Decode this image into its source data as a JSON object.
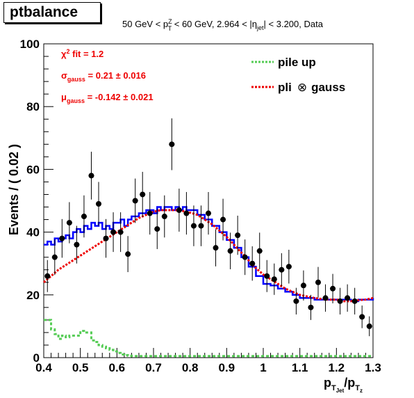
{
  "title": "ptbalance",
  "header": {
    "pre": "50 GeV < p",
    "pt_sup": "Z",
    "pt_sub": "T",
    "mid": " < 60 GeV, 2.964 < |η",
    "eta_sub": "jet",
    "post": "| < 3.200, Data"
  },
  "fit_labels": {
    "chi2": {
      "greek": "χ",
      "sup": "2",
      "text": " fit = 1.2"
    },
    "sigma": {
      "greek": "σ",
      "sub": "gauss",
      "text": " = 0.21 ± 0.016"
    },
    "mu": {
      "greek": "μ",
      "sub": "gauss",
      "text": " = -0.142 ± 0.021"
    }
  },
  "legend": {
    "pileup": "pile up",
    "pli_a": "pli",
    "otimes": "⊗",
    "pli_b": "gauss"
  },
  "axes": {
    "ylabel": "Events / ( 0.02 )",
    "xlabel_main": "p",
    "xlabel_sub": "T",
    "xlabel_subsub": "Jet",
    "xlabel_slash": "/p",
    "xlabel_sub2": "T",
    "xlabel_subsub2": "z"
  },
  "colors": {
    "data": "#000000",
    "pdf": "#0000ff",
    "fit": "#ee0000",
    "pileup": "#55cc55",
    "label_red": "#ee0000"
  },
  "chart_data": {
    "type": "scatter",
    "xlim": [
      0.4,
      1.3
    ],
    "ylim": [
      0,
      100
    ],
    "x_ticks": [
      0.4,
      0.5,
      0.6,
      0.7,
      0.8,
      0.9,
      1.0,
      1.1,
      1.2,
      1.3
    ],
    "x_tick_labels": [
      "0.4",
      "0.5",
      "0.6",
      "0.7",
      "0.8",
      "0.9",
      "1",
      "1.1",
      "1.2",
      "1.3"
    ],
    "y_ticks": [
      0,
      20,
      40,
      60,
      80,
      100
    ],
    "y_tick_labels": [
      "0",
      "20",
      "40",
      "60",
      "80",
      "100"
    ],
    "legend_position": "top-right",
    "series": [
      {
        "kind": "data_points",
        "x": [
          0.41,
          0.43,
          0.45,
          0.47,
          0.49,
          0.51,
          0.53,
          0.55,
          0.57,
          0.59,
          0.61,
          0.63,
          0.65,
          0.67,
          0.69,
          0.71,
          0.73,
          0.75,
          0.77,
          0.79,
          0.81,
          0.83,
          0.85,
          0.87,
          0.89,
          0.91,
          0.93,
          0.95,
          0.97,
          0.99,
          1.01,
          1.03,
          1.05,
          1.07,
          1.09,
          1.11,
          1.13,
          1.15,
          1.17,
          1.19,
          1.21,
          1.23,
          1.25,
          1.27,
          1.29
        ],
        "y": [
          26,
          32,
          38,
          43,
          36,
          45,
          58,
          49,
          38,
          40,
          40,
          33,
          50,
          52,
          46,
          41,
          45,
          68,
          47,
          46,
          42,
          42,
          46,
          35,
          44,
          34,
          39,
          32,
          30,
          34,
          26,
          25,
          28,
          29,
          18,
          23,
          16,
          24,
          19,
          22,
          18,
          19,
          18,
          13,
          10
        ]
      },
      {
        "kind": "pdf_step",
        "x": [
          0.4,
          0.41,
          0.42,
          0.43,
          0.44,
          0.45,
          0.46,
          0.47,
          0.48,
          0.49,
          0.5,
          0.51,
          0.52,
          0.53,
          0.54,
          0.55,
          0.56,
          0.57,
          0.58,
          0.59,
          0.6,
          0.61,
          0.62,
          0.63,
          0.64,
          0.65,
          0.66,
          0.67,
          0.68,
          0.69,
          0.7,
          0.71,
          0.72,
          0.73,
          0.74,
          0.75,
          0.76,
          0.77,
          0.78,
          0.79,
          0.8,
          0.82,
          0.84,
          0.86,
          0.88,
          0.9,
          0.92,
          0.94,
          0.96,
          0.98,
          1.0,
          1.02,
          1.04,
          1.06,
          1.08,
          1.1,
          1.12,
          1.14,
          1.16,
          1.18,
          1.2,
          1.22,
          1.24,
          1.26,
          1.28,
          1.3
        ],
        "y": [
          36,
          37,
          36,
          38,
          37,
          38,
          39,
          38,
          40,
          41,
          40,
          42,
          41,
          43,
          42,
          43,
          41,
          42,
          41,
          43,
          43,
          44,
          42,
          44,
          45,
          45,
          46,
          46,
          47,
          47,
          46,
          48,
          47,
          48,
          48,
          47,
          48,
          47,
          48,
          47,
          47,
          45.5,
          44,
          42,
          40,
          37.5,
          35,
          32,
          29,
          26,
          23.5,
          23,
          22,
          21,
          20,
          19,
          19,
          18.5,
          18.5,
          18.5,
          18.5,
          18.5,
          18,
          18.5,
          18.5,
          19
        ]
      },
      {
        "kind": "fit_curve",
        "x": [
          0.4,
          0.42,
          0.44,
          0.46,
          0.48,
          0.5,
          0.52,
          0.54,
          0.56,
          0.58,
          0.6,
          0.62,
          0.64,
          0.66,
          0.68,
          0.7,
          0.72,
          0.74,
          0.76,
          0.78,
          0.8,
          0.82,
          0.84,
          0.86,
          0.88,
          0.9,
          0.92,
          0.94,
          0.96,
          0.98,
          1.0,
          1.02,
          1.04,
          1.06,
          1.08,
          1.1,
          1.12,
          1.14,
          1.16,
          1.18,
          1.2,
          1.22,
          1.24,
          1.26,
          1.28,
          1.3
        ],
        "y": [
          24,
          26,
          28,
          29.5,
          31,
          32.5,
          34,
          35.5,
          37,
          38.5,
          40,
          41.5,
          43,
          44.5,
          45.5,
          46.5,
          47,
          47,
          47,
          46.7,
          46.2,
          45.5,
          44,
          42.5,
          40.5,
          38.5,
          36,
          33.5,
          31,
          28.5,
          26.5,
          25,
          23.5,
          22,
          21,
          20,
          19.5,
          19,
          18.7,
          18.5,
          18.5,
          18,
          18,
          18.3,
          18.5,
          19
        ]
      },
      {
        "kind": "pileup_step",
        "x": [
          0.4,
          0.41,
          0.42,
          0.43,
          0.44,
          0.45,
          0.46,
          0.47,
          0.48,
          0.49,
          0.5,
          0.51,
          0.52,
          0.53,
          0.54,
          0.55,
          0.56,
          0.57,
          0.58,
          0.59,
          0.6,
          0.61,
          0.62,
          0.63,
          0.64,
          0.65,
          0.7,
          0.8,
          0.9,
          1.0,
          1.1,
          1.2,
          1.3
        ],
        "y": [
          12,
          12,
          9,
          7.5,
          6,
          7,
          6.5,
          7,
          7,
          7,
          8.5,
          8,
          8,
          5.5,
          5,
          4,
          3.5,
          3,
          2.5,
          2,
          1.5,
          1,
          0.8,
          0.6,
          0.5,
          0.5,
          0.5,
          0.5,
          0.5,
          0.5,
          0.5,
          0.5,
          0.5
        ]
      }
    ]
  }
}
